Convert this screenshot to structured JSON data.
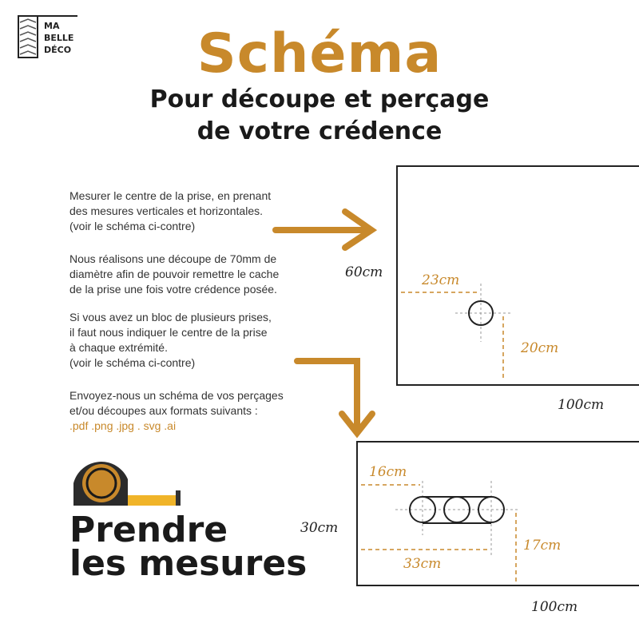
{
  "logo": {
    "lines": [
      "MA",
      "BELLE",
      "DÉCO"
    ]
  },
  "header": {
    "title": "Schéma",
    "subtitle_line1": "Pour découpe et perçage",
    "subtitle_line2": "de votre crédence"
  },
  "instructions": [
    "Mesurer le centre de la prise, en prenant\ndes mesures verticales et horizontales.\n(voir le schéma ci-contre)",
    "Nous réalisons une découpe de 70mm de\ndiamètre afin de pouvoir remettre le cache\nde la prise une fois votre crédence posée.",
    "Si vous avez un bloc de plusieurs prises,\nil faut nous indiquer le centre de la prise\nà chaque extrémité.\n(voir le schéma ci-contre)",
    "Envoyez-nous un schéma de vos perçages\net/ou découpes aux formats suivants :"
  ],
  "formats": ".pdf .png .jpg . svg .ai",
  "footer_title": {
    "line1": "Prendre",
    "line2": "les mesures"
  },
  "diagram1": {
    "height": "60cm",
    "width": "100cm",
    "horizontal": "23cm",
    "vertical": "20cm"
  },
  "diagram2": {
    "height": "30cm",
    "width": "100cm",
    "left_first": "16cm",
    "left_last": "33cm",
    "vertical": "17cm"
  },
  "colors": {
    "accent": "#c8892b",
    "dark": "#1a1a1a",
    "tape_yellow": "#f0b429"
  },
  "icons": [
    "tape-measure-icon",
    "arrow-right-icon",
    "arrow-down-icon"
  ]
}
